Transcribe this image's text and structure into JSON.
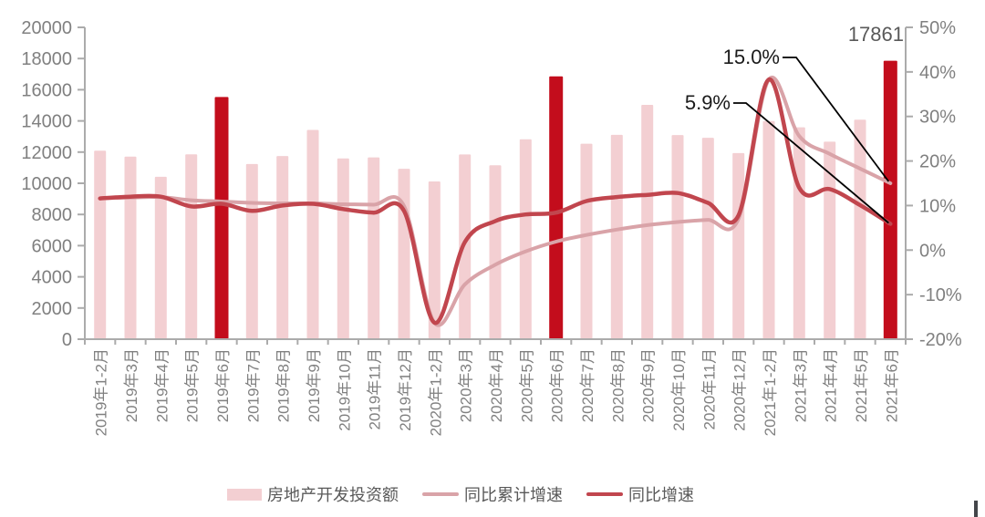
{
  "annotations": {
    "last_bar_value": "17861",
    "cumulative_end_label": "15.0%",
    "monthly_end_label": "5.9%"
  },
  "chart_data": {
    "type": "bar+line combo",
    "title": "",
    "categories": [
      "2019年1-2月",
      "2019年3月",
      "2019年4月",
      "2019年5月",
      "2019年6月",
      "2019年7月",
      "2019年8月",
      "2019年9月",
      "2019年10月",
      "2019年11月",
      "2019年12月",
      "2020年1-2月",
      "2020年3月",
      "2020年4月",
      "2020年5月",
      "2020年6月",
      "2020年7月",
      "2020年8月",
      "2020年9月",
      "2020年10月",
      "2020年11月",
      "2020年12月",
      "2021年1-2月",
      "2021年3月",
      "2021年4月",
      "2021年5月",
      "2021年6月"
    ],
    "series": [
      {
        "name": "房地产开发投资额",
        "type": "bar",
        "axis": "left",
        "values": [
          12090,
          11713,
          10414,
          11858,
          15534,
          11234,
          11746,
          13419,
          11595,
          11662,
          10929,
          10115,
          11848,
          11154,
          12818,
          16862,
          12540,
          13108,
          15030,
          13096,
          12919,
          11936,
          13986,
          13590,
          12664,
          14078,
          17861
        ],
        "highlight_indices": [
          4,
          15,
          26
        ],
        "highlight_categories": [
          "2019年6月",
          "2020年6月",
          "2021年6月"
        ]
      },
      {
        "name": "同比累计增速",
        "type": "line",
        "axis": "right",
        "values": [
          11.6,
          11.8,
          11.9,
          11.2,
          10.9,
          10.6,
          10.5,
          10.5,
          10.3,
          10.2,
          9.9,
          -16.3,
          -7.7,
          -3.3,
          -0.3,
          1.9,
          3.4,
          4.6,
          5.6,
          6.3,
          6.8,
          7.0,
          38.3,
          25.6,
          21.6,
          18.3,
          15.0
        ]
      },
      {
        "name": "同比增速",
        "type": "line",
        "axis": "right",
        "values": [
          11.6,
          12.0,
          12.0,
          9.8,
          10.4,
          8.8,
          10.0,
          10.4,
          9.2,
          8.4,
          8.8,
          -16.3,
          1.8,
          6.5,
          8.0,
          8.4,
          11.0,
          11.9,
          12.4,
          12.8,
          10.6,
          7.8,
          38.3,
          14.0,
          13.7,
          10.1,
          5.9
        ]
      }
    ],
    "left_axis": {
      "min": 0,
      "max": 20000,
      "step": 2000,
      "tick_labels": [
        "0",
        "2000",
        "4000",
        "6000",
        "8000",
        "10000",
        "12000",
        "14000",
        "16000",
        "18000",
        "20000"
      ]
    },
    "right_axis": {
      "min": -20,
      "max": 50,
      "step": 10,
      "tick_labels": [
        "-20%",
        "-10%",
        "0%",
        "10%",
        "20%",
        "30%",
        "40%",
        "50%"
      ]
    },
    "legend": [
      "房地产开发投资额",
      "同比累计增速",
      "同比增速"
    ],
    "legend_position": "bottom",
    "grid": false,
    "colors": {
      "bar": "#f3cfd2",
      "bar_highlight": "#c30d1c",
      "line_cumulative": "#d9a3a8",
      "line_monthly": "#c1464e",
      "axis": "#ababab",
      "axis_text": "#808080",
      "legend_text": "#595959",
      "annotation_text": "#1a1a1a",
      "annotation_value_text": "#595959",
      "connector": "#000000"
    }
  }
}
